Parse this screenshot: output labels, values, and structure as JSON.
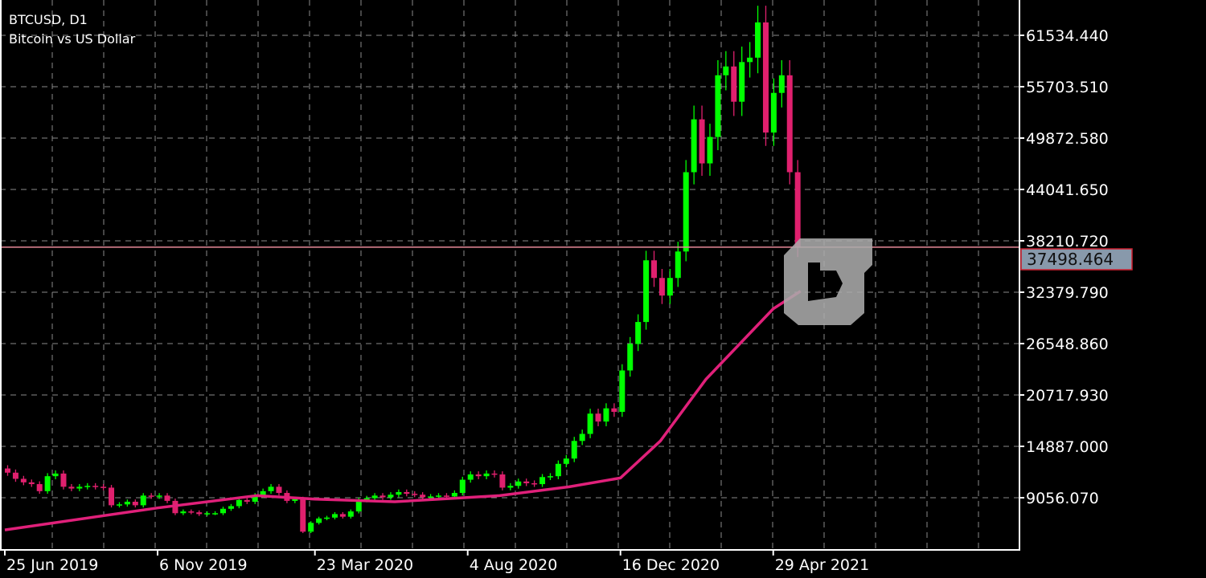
{
  "header": {
    "symbol": "BTCUSD, D1",
    "description": "Bitcoin vs US Dollar"
  },
  "colors": {
    "background": "#000000",
    "bull": "#00ff00",
    "bear": "#e0206e",
    "ma": "#e0207a",
    "price_line": "#e88a9a",
    "price_label_bg": "#8899ab",
    "grid": "#8a8a8a"
  },
  "chart_data": {
    "type": "candlestick",
    "ylim": [
      4000,
      65000
    ],
    "y_ticks": [
      "61534.440",
      "55703.510",
      "49872.580",
      "44041.650",
      "38210.720",
      "32379.790",
      "26548.860",
      "20717.930",
      "14887.000",
      "9056.070"
    ],
    "y_tick_values": [
      61534.44,
      55703.51,
      49872.58,
      44041.65,
      38210.72,
      32379.79,
      26548.86,
      20717.93,
      14887.0,
      9056.07
    ],
    "x_ticks": [
      "25 Jun 2019",
      "6 Nov 2019",
      "23 Mar 2020",
      "4 Aug 2020",
      "16 Dec 2020",
      "29 Apr 2021"
    ],
    "x_tick_dates": [
      "2019-06-25",
      "2019-11-06",
      "2020-03-23",
      "2020-08-04",
      "2020-12-16",
      "2021-04-29"
    ],
    "grid": true,
    "current_price": "37498.464",
    "current_price_value": 37498.464,
    "series_start": "2019-06-25",
    "series_step_days": 7,
    "closes": [
      11900,
      11200,
      10800,
      10600,
      9800,
      11500,
      11800,
      10300,
      10100,
      10300,
      10400,
      10300,
      10200,
      8200,
      8300,
      8600,
      8200,
      9300,
      9200,
      9300,
      8700,
      7300,
      7500,
      7400,
      7200,
      7300,
      7300,
      7800,
      8100,
      8800,
      8600,
      9300,
      9800,
      10300,
      9600,
      8700,
      8900,
      5200,
      6200,
      6700,
      6800,
      7200,
      6900,
      7500,
      8800,
      9000,
      9300,
      9100,
      9400,
      9700,
      9500,
      9400,
      9100,
      9200,
      9300,
      9200,
      9600,
      11100,
      11700,
      11500,
      11800,
      11700,
      10200,
      10400,
      10900,
      10700,
      10600,
      11400,
      11500,
      12900,
      13500,
      15500,
      16300,
      18600,
      17700,
      19200,
      18800,
      23500,
      26500,
      29000,
      36000,
      34000,
      32000,
      34000,
      37000,
      46000,
      52000,
      47000,
      50000,
      57000,
      58000,
      54000,
      58500,
      59000,
      63000,
      50500,
      55000,
      57000,
      46000,
      37498
    ],
    "moving_average": [
      {
        "date": "2019-06-25",
        "value": 5400
      },
      {
        "date": "2019-11-06",
        "value": 7900
      },
      {
        "date": "2020-02-01",
        "value": 9300
      },
      {
        "date": "2020-03-23",
        "value": 8900
      },
      {
        "date": "2020-06-01",
        "value": 8600
      },
      {
        "date": "2020-09-01",
        "value": 9300
      },
      {
        "date": "2020-11-01",
        "value": 10300
      },
      {
        "date": "2020-12-16",
        "value": 11300
      },
      {
        "date": "2021-01-20",
        "value": 15500
      },
      {
        "date": "2021-03-01",
        "value": 22500
      },
      {
        "date": "2021-04-29",
        "value": 30500
      },
      {
        "date": "2021-05-23",
        "value": 32500
      }
    ]
  }
}
